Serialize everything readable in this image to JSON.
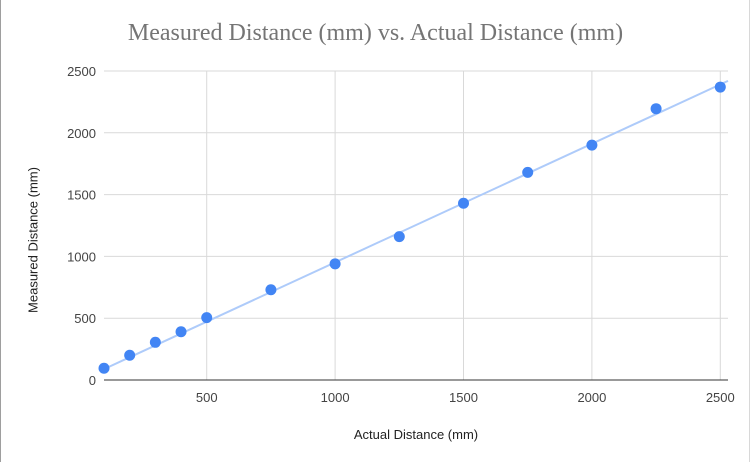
{
  "chart_data": {
    "type": "scatter",
    "title": "Measured Distance (mm) vs. Actual Distance (mm)",
    "xlabel": "Actual Distance (mm)",
    "ylabel": "Measured Distance (mm)",
    "xlim": [
      100,
      2530
    ],
    "ylim": [
      0,
      2500
    ],
    "xticks": [
      500,
      1000,
      1500,
      2000,
      2500
    ],
    "yticks": [
      0,
      500,
      1000,
      1500,
      2000,
      2500
    ],
    "grid": true,
    "legend": "none",
    "point_color": "#4285f4",
    "trendline_color": "#aecbfa",
    "series": [
      {
        "x": [
          100,
          200,
          300,
          400,
          500,
          750,
          1000,
          1250,
          1500,
          1750,
          2000,
          2250,
          2500
        ],
        "y": [
          95,
          200,
          305,
          390,
          505,
          730,
          940,
          1160,
          1430,
          1680,
          1900,
          2195,
          2370
        ]
      }
    ],
    "trendline": {
      "x": [
        100,
        2530
      ],
      "y": [
        88,
        2420
      ]
    }
  }
}
